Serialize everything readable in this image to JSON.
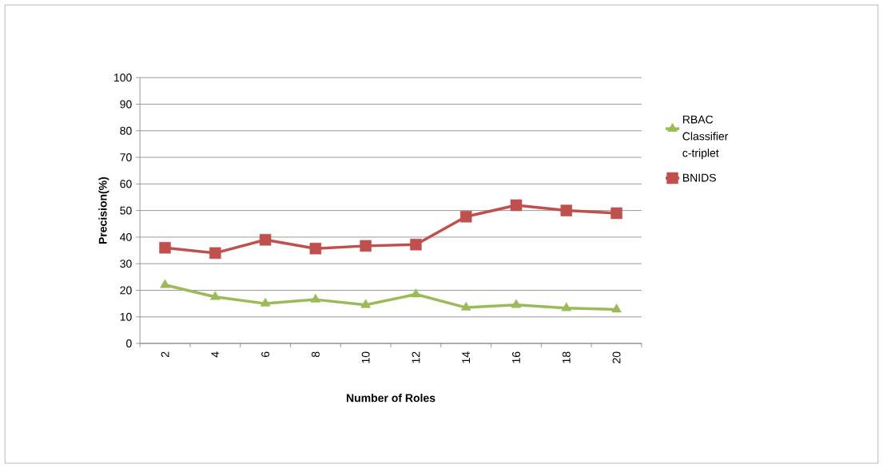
{
  "chart_data": {
    "type": "line",
    "xlabel": "Number of Roles",
    "ylabel": "Precision(%)",
    "categories": [
      "2",
      "4",
      "6",
      "8",
      "10",
      "12",
      "14",
      "16",
      "18",
      "20"
    ],
    "ylim": [
      0,
      100
    ],
    "yticks": [
      0,
      10,
      20,
      30,
      40,
      50,
      60,
      70,
      80,
      90,
      100
    ],
    "grid": "y",
    "legend": "right",
    "line_style": "solid",
    "series": [
      {
        "name": "RBAC Classifier c-triplet",
        "color": "#9bbb59",
        "marker": "triangle",
        "values": [
          22,
          17.5,
          15,
          16.5,
          14.5,
          18.5,
          13.5,
          14.5,
          13.3,
          12.8
        ]
      },
      {
        "name": "BNIDS",
        "color": "#c0504d",
        "marker": "square",
        "values": [
          36,
          34,
          39,
          35.7,
          36.7,
          37.2,
          47.7,
          52,
          50,
          49
        ]
      }
    ]
  }
}
